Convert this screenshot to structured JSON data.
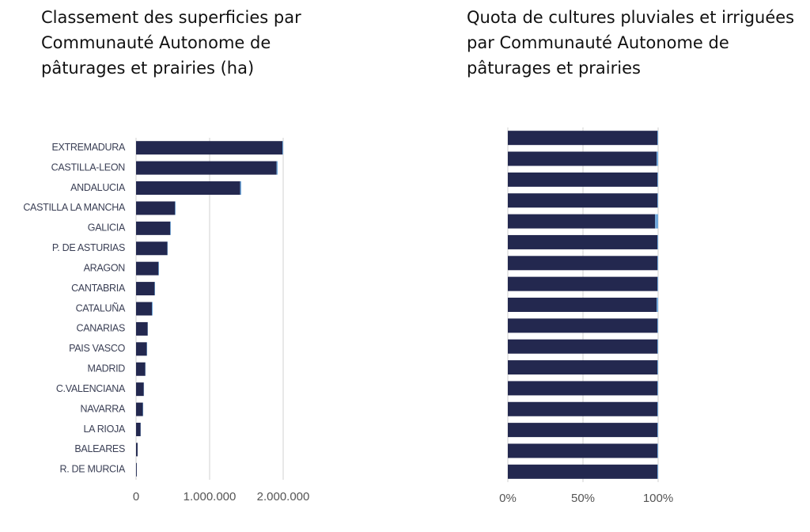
{
  "chart_data": [
    {
      "type": "bar",
      "orientation": "horizontal",
      "stacked": true,
      "title": "Classement des superficies par Communauté Autonome de pâturages et prairies (ha)",
      "categories": [
        "EXTREMADURA",
        "CASTILLA-LEON",
        "ANDALUCIA",
        "CASTILLA LA MANCHA",
        "GALICIA",
        "P. DE ASTURIAS",
        "ARAGON",
        "CANTABRIA",
        "CATALUÑA",
        "CANARIAS",
        "PAIS VASCO",
        "MADRID",
        "C.VALENCIANA",
        "NAVARRA",
        "LA RIOJA",
        "BALEARES",
        "R. DE MURCIA"
      ],
      "series": [
        {
          "color": "#23284f",
          "values": [
            1990000,
            1910000,
            1415000,
            530000,
            465000,
            425000,
            305000,
            252000,
            215000,
            158000,
            145000,
            126000,
            105000,
            92000,
            62000,
            21000,
            10000
          ]
        },
        {
          "color": "#6fa8dc",
          "values": [
            10000,
            15000,
            15000,
            8000,
            8000,
            5000,
            7000,
            6000,
            11000,
            3000,
            5000,
            3000,
            3000,
            5000,
            3000,
            1000,
            1000
          ]
        }
      ],
      "xlim": [
        0,
        2000000
      ],
      "xticks": [
        0,
        {
          "value": 1000000,
          "label": "1.000.000"
        },
        {
          "value": 2000000,
          "label": "2.000.000"
        }
      ],
      "grid": true
    },
    {
      "type": "bar",
      "orientation": "horizontal",
      "stacked": true,
      "title": "Quota de cultures pluviales et irriguées par Communauté Autonome de pâturages et prairies",
      "categories": [
        null,
        null,
        null,
        null,
        null,
        null,
        null,
        null,
        null,
        null,
        null,
        null,
        null,
        null,
        null,
        null,
        null
      ],
      "series": [
        {
          "color": "#23284f",
          "values": [
            99.5,
            99,
            99.5,
            99.5,
            98,
            99.5,
            99.5,
            99.5,
            99,
            99.5,
            99.5,
            99.5,
            99.5,
            99.5,
            99.5,
            99.5,
            99.5
          ]
        },
        {
          "color": "#6fa8dc",
          "values": [
            0.5,
            1,
            0.5,
            0.5,
            2,
            0.5,
            0.5,
            0.5,
            1,
            0.5,
            0.5,
            0.5,
            0.5,
            0.5,
            0.5,
            0.5,
            0.5
          ]
        }
      ],
      "xlim": [
        0,
        100
      ],
      "xticks": [
        {
          "value": 0,
          "label": "0%"
        },
        {
          "value": 50,
          "label": "50%"
        },
        {
          "value": 100,
          "label": "100%"
        }
      ],
      "grid": true
    }
  ]
}
